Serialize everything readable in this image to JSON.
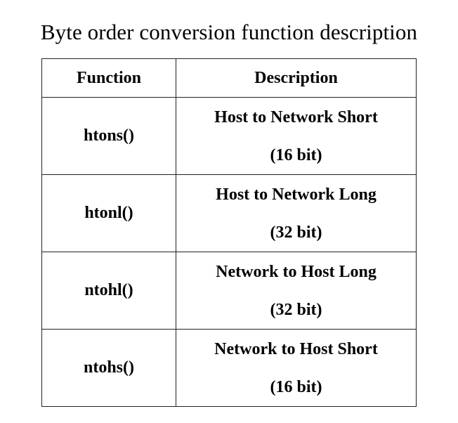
{
  "caption": "Byte order conversion function description",
  "table": {
    "headers": {
      "function": "Function",
      "description": "Description"
    },
    "rows": [
      {
        "function": "htons()",
        "description": "Host to Network Short",
        "bits": "(16 bit)"
      },
      {
        "function": "htonl()",
        "description": "Host to Network Long",
        "bits": "(32 bit)"
      },
      {
        "function": "ntohl()",
        "description": "Network to Host Long",
        "bits": "(32 bit)"
      },
      {
        "function": "ntohs()",
        "description": "Network to Host Short",
        "bits": "(16 bit)"
      }
    ]
  }
}
